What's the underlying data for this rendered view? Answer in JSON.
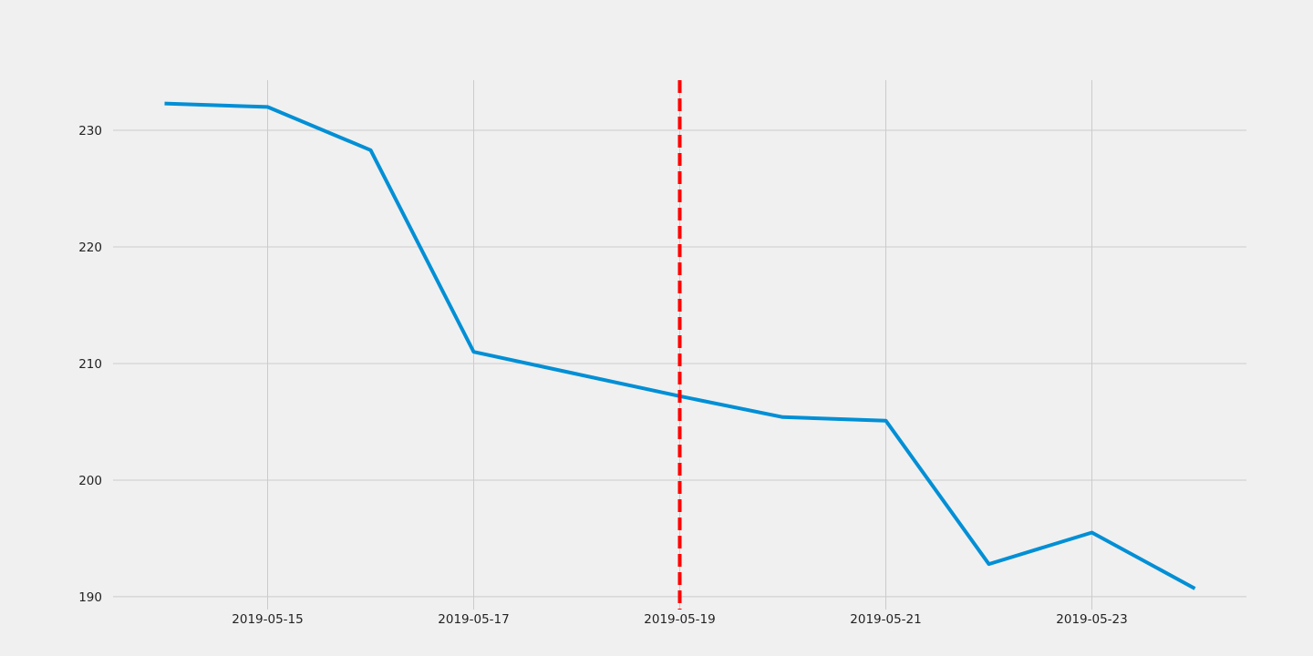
{
  "chart_data": {
    "type": "line",
    "title": "",
    "xlabel": "",
    "ylabel": "",
    "x": [
      "2019-05-14",
      "2019-05-15",
      "2019-05-16",
      "2019-05-17",
      "2019-05-18",
      "2019-05-19",
      "2019-05-20",
      "2019-05-21",
      "2019-05-22",
      "2019-05-23",
      "2019-05-24"
    ],
    "series": [
      {
        "values": [
          232.3,
          232.0,
          228.3,
          211.0,
          209.1,
          207.2,
          205.4,
          205.1,
          192.8,
          195.5,
          190.7
        ]
      }
    ],
    "xlim": [
      "2019-05-13 12:00",
      "2019-05-24 12:00"
    ],
    "ylim": [
      188.9,
      234.3
    ],
    "x_ticks": [
      "2019-05-15",
      "2019-05-17",
      "2019-05-19",
      "2019-05-21",
      "2019-05-23"
    ],
    "y_ticks": [
      190,
      200,
      210,
      220,
      230
    ],
    "vertical_marker": {
      "x": "2019-05-19",
      "style": "dashed"
    },
    "grid": true,
    "legend": "none",
    "colors": {
      "background": "#f0f0f0",
      "line": "#008fd5",
      "marker": "#ff0000",
      "grid": "#cbcbcb"
    }
  }
}
